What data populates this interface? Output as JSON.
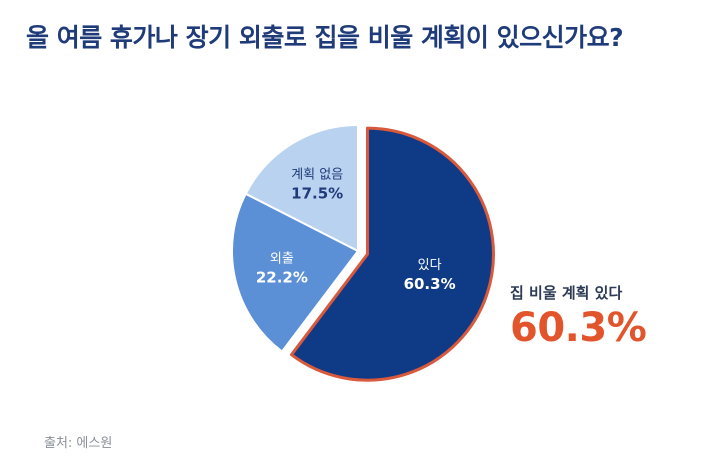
{
  "title": "올 여름 휴가나 장기 외출로 집을 비울 계획이 있으신가요?",
  "chart_data": {
    "type": "pie",
    "title": "올 여름 휴가나 장기 외출로 집을 비울 계획이 있으신가요?",
    "slices": [
      {
        "label": "있다",
        "value": 60.3,
        "value_label": "60.3%",
        "color": "#0e3a86",
        "exploded": true,
        "outline_color": "#d8593c"
      },
      {
        "label": "외출",
        "value": 22.2,
        "value_label": "22.2%",
        "color": "#5b8fd6",
        "exploded": false
      },
      {
        "label": "계획 없음",
        "value": 17.5,
        "value_label": "17.5%",
        "color": "#b9d2f0",
        "exploded": false
      }
    ],
    "highlight": {
      "label": "집 비울 계획 있다",
      "value_label": "60.3%",
      "color": "#e2542c"
    }
  },
  "source": "출처: 에스원"
}
